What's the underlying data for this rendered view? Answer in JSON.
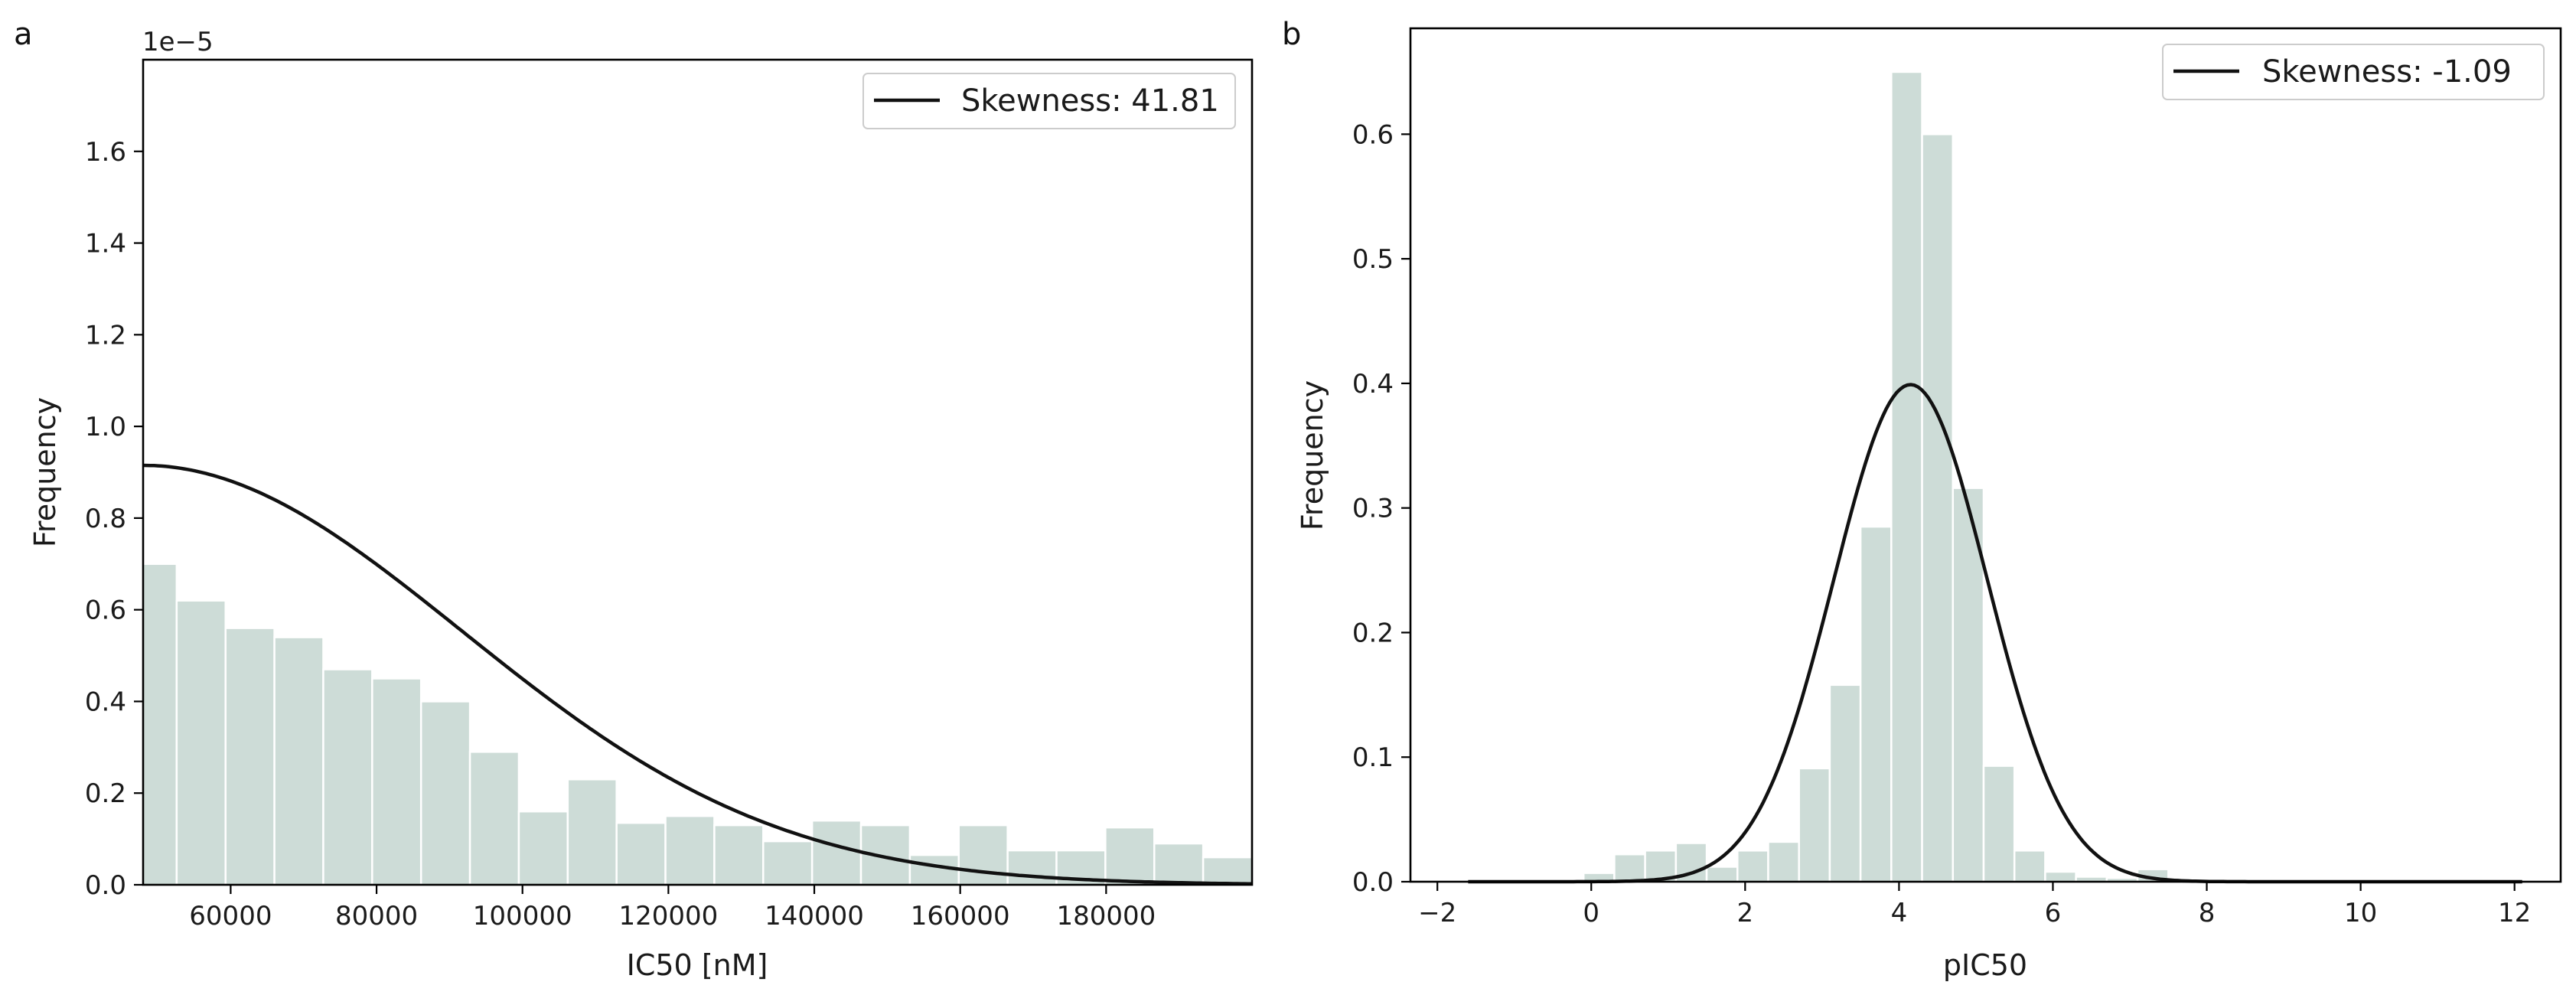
{
  "chart_data": [
    {
      "panel": "a",
      "type": "bar",
      "offset_label": "1e−5",
      "xlabel": "IC50 [nM]",
      "ylabel": "Frequency",
      "xlim": [
        48000,
        200000
      ],
      "ylim": [
        0,
        1.8
      ],
      "xticks": [
        60000,
        80000,
        100000,
        120000,
        140000,
        160000,
        180000
      ],
      "xtick_labels": [
        "60000",
        "80000",
        "100000",
        "120000",
        "140000",
        "160000",
        "180000"
      ],
      "yticks": [
        0.0,
        0.2,
        0.4,
        0.6,
        0.8,
        1.0,
        1.2,
        1.4,
        1.6
      ],
      "ytick_labels": [
        "0.0",
        "0.2",
        "0.4",
        "0.6",
        "0.8",
        "1.0",
        "1.2",
        "1.4",
        "1.6"
      ],
      "bin_edges": [
        48000,
        52600,
        59300,
        66000,
        72700,
        79400,
        86100,
        92800,
        99500,
        106200,
        112900,
        119600,
        126300,
        133000,
        139700,
        146400,
        153100,
        159800,
        166500,
        173200,
        179900,
        186600,
        193300,
        200000
      ],
      "values": [
        0.7,
        0.62,
        0.56,
        0.54,
        0.47,
        0.45,
        0.4,
        0.29,
        0.16,
        0.23,
        0.135,
        0.15,
        0.13,
        0.095,
        0.14,
        0.13,
        0.065,
        0.13,
        0.075,
        0.075,
        0.125,
        0.09,
        0.06
      ],
      "fit_curve": {
        "type": "normal",
        "mean": 48000,
        "sd": 43600,
        "peak": 0.915
      },
      "legend": {
        "label": "Skewness: 41.81",
        "placement": "top-right"
      },
      "legend_label": "Skewness: 41.81"
    },
    {
      "panel": "b",
      "type": "bar",
      "xlabel": "pIC50",
      "ylabel": "Frequency",
      "xlim": [
        -2.35,
        12.6
      ],
      "ylim": [
        0,
        0.685
      ],
      "xticks": [
        -2,
        0,
        2,
        4,
        6,
        8,
        10,
        12
      ],
      "xtick_labels": [
        "−2",
        "0",
        "2",
        "4",
        "6",
        "8",
        "10",
        "12"
      ],
      "yticks": [
        0.0,
        0.1,
        0.2,
        0.3,
        0.4,
        0.5,
        0.6
      ],
      "ytick_labels": [
        "0.0",
        "0.1",
        "0.2",
        "0.3",
        "0.4",
        "0.5",
        "0.6"
      ],
      "bin_edges": [
        -0.5,
        -0.1,
        0.3,
        0.7,
        1.1,
        1.5,
        1.9,
        2.3,
        2.7,
        3.1,
        3.5,
        3.9,
        4.3,
        4.7,
        5.1,
        5.5,
        5.9,
        6.3,
        6.7,
        7.1,
        7.5,
        7.9
      ],
      "values": [
        0.002,
        0.007,
        0.022,
        0.025,
        0.031,
        0.012,
        0.025,
        0.032,
        0.091,
        0.158,
        0.285,
        0.65,
        0.6,
        0.316,
        0.093,
        0.025,
        0.008,
        0.004,
        0.003,
        0.01,
        0.001
      ],
      "fit_curve": {
        "type": "normal",
        "mean": 4.15,
        "sd": 1.0,
        "peak": 0.399,
        "x_range": [
          -1.6,
          12.1
        ]
      },
      "legend": {
        "label": "Skewness: -1.09",
        "placement": "top-right"
      },
      "legend_label": "Skewness: -1.09"
    }
  ]
}
